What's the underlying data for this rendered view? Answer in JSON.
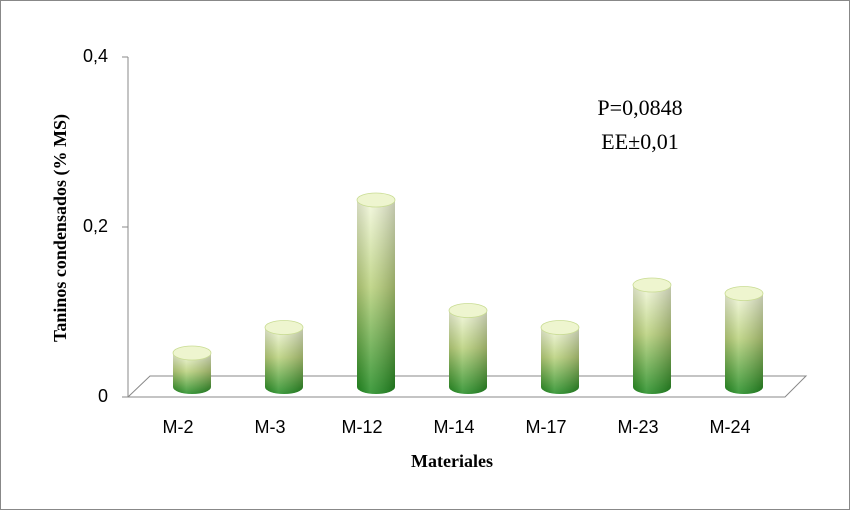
{
  "chart_data": {
    "type": "bar3d",
    "x_label": "Materiales",
    "y_label": "Taninos condensados (% MS)",
    "annotations": [
      "P=0,0848",
      "EE±0,01"
    ],
    "categories": [
      "M-2",
      "M-3",
      "M-12",
      "M-14",
      "M-17",
      "M-23",
      "M-24"
    ],
    "values": [
      0.04,
      0.07,
      0.22,
      0.09,
      0.07,
      0.12,
      0.11
    ],
    "color": "#1f8a1f",
    "ylim": [
      0,
      0.4
    ],
    "yticks": [
      0,
      {
        "value": 0.2,
        "label": "0,2"
      },
      {
        "value": 0.4,
        "label": "0,4"
      }
    ]
  }
}
